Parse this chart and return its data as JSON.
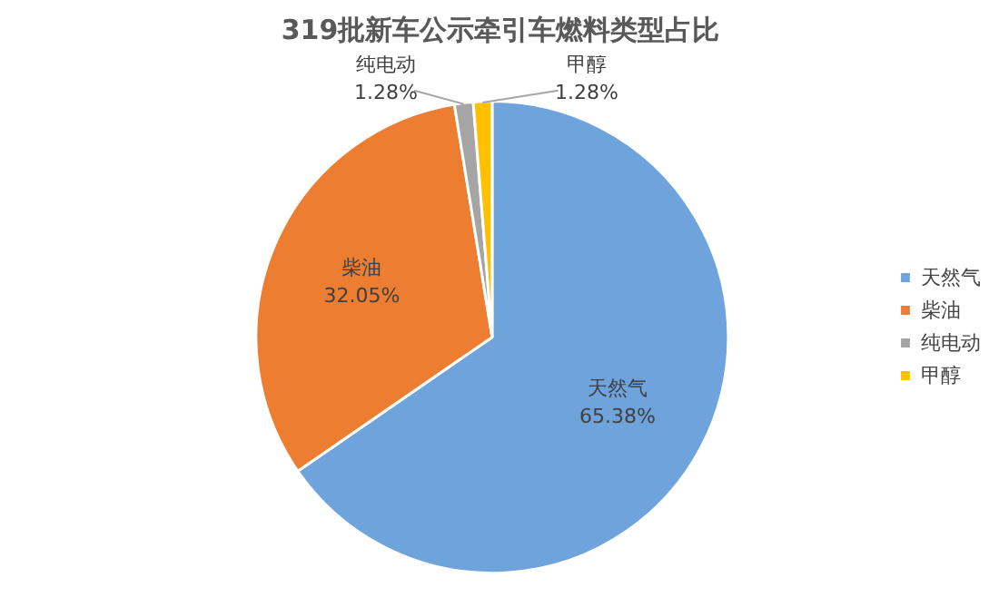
{
  "chart_data": {
    "type": "pie",
    "title": "319批新车公示牵引车燃料类型占比",
    "categories": [
      "天然气",
      "柴油",
      "纯电动",
      "甲醇"
    ],
    "values": [
      65.38,
      32.05,
      1.28,
      1.28
    ],
    "value_labels": [
      "65.38%",
      "32.05%",
      "1.28%",
      "1.28%"
    ],
    "colors": [
      "#6fa3dc",
      "#ed7d31",
      "#a5a5a5",
      "#ffc000"
    ],
    "legend": "right"
  }
}
